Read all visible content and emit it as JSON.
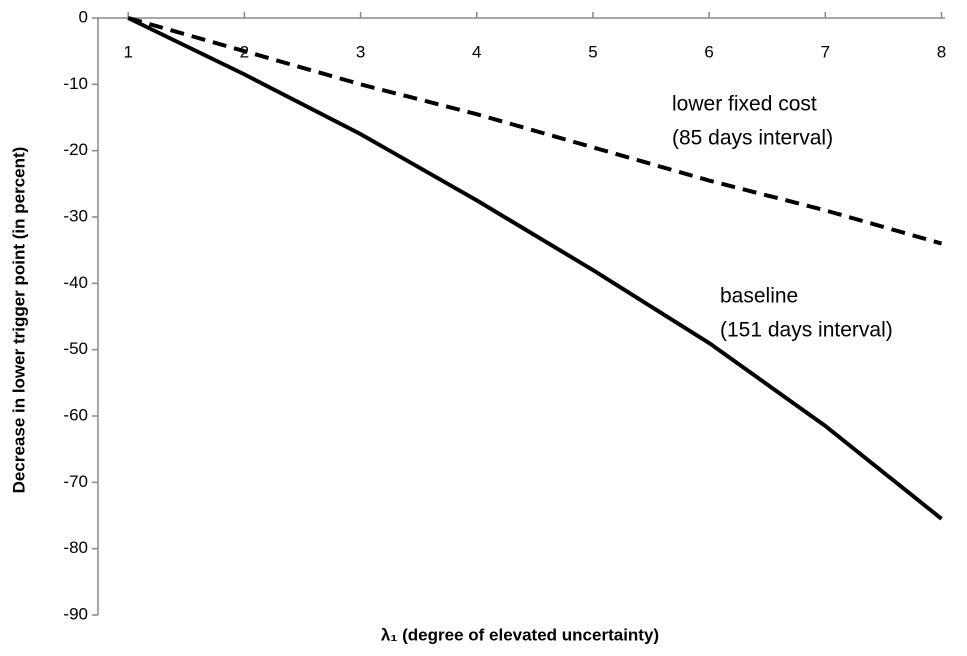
{
  "chart_data": {
    "type": "line",
    "x_label": "λ₁ (degree of elevated uncertainty)",
    "y_label": "Decrease in lower trigger point (in percent)",
    "x": [
      1,
      2,
      3,
      4,
      5,
      6,
      7,
      8
    ],
    "series": [
      {
        "name": "lower fixed cost",
        "color": "#000000",
        "dash": true,
        "values": [
          0,
          -5,
          -10,
          -14.5,
          -19.5,
          -24.5,
          -29,
          -34
        ]
      },
      {
        "name": "baseline",
        "color": "#000000",
        "dash": false,
        "values": [
          0,
          -8.5,
          -17.5,
          -27.5,
          -38,
          -49,
          -61.5,
          -75.5
        ]
      }
    ],
    "annotations": [
      {
        "lines": [
          "lower fixed cost",
          "(85 days interval)"
        ],
        "series": 0
      },
      {
        "lines": [
          "baseline",
          "(151 days interval)"
        ],
        "series": 1
      }
    ],
    "xlim": [
      0.74,
      8.03
    ],
    "xticks": [
      1,
      2,
      3,
      4,
      5,
      6,
      7,
      8
    ],
    "ylim": [
      -90,
      0
    ],
    "yticks": [
      0,
      -10,
      -20,
      -30,
      -40,
      -50,
      -60,
      -70,
      -80,
      -90
    ],
    "grid": false
  }
}
